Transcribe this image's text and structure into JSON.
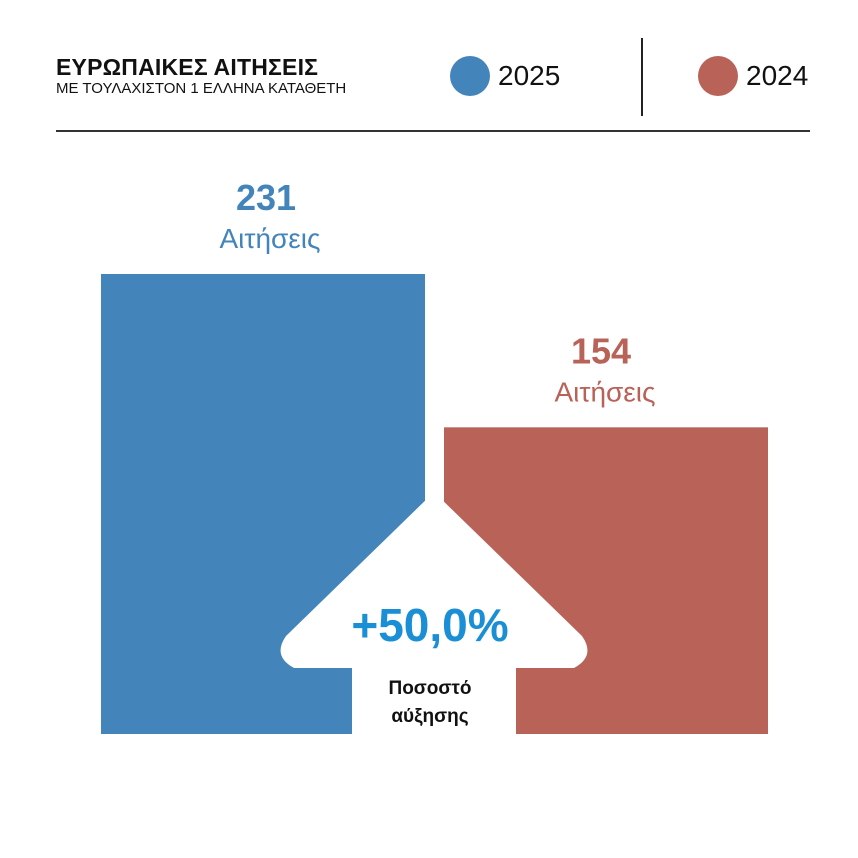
{
  "header": {
    "title": "ΕΥΡΩΠΑΙΚΕΣ ΑΙΤΗΣΕΙΣ",
    "subtitle": "ΜΕ ΤΟΥΛΑΧΙΣΤΟΝ 1 ΕΛΛΗΝΑ ΚΑΤΑΘΕΤΗ"
  },
  "legend": [
    {
      "label": "2025",
      "color": "#4384bb"
    },
    {
      "label": "2024",
      "color": "#b96258"
    }
  ],
  "chart_data": {
    "type": "bar",
    "categories": [
      "2025",
      "2024"
    ],
    "values": [
      231,
      154
    ],
    "value_unit": "Αιτήσεις",
    "colors": [
      "#4384bb",
      "#b96258"
    ],
    "change": {
      "value": "+50,0%",
      "label_line1": "Ποσοστό",
      "label_line2": "αύξησης",
      "color": "#1a8fd6"
    }
  }
}
